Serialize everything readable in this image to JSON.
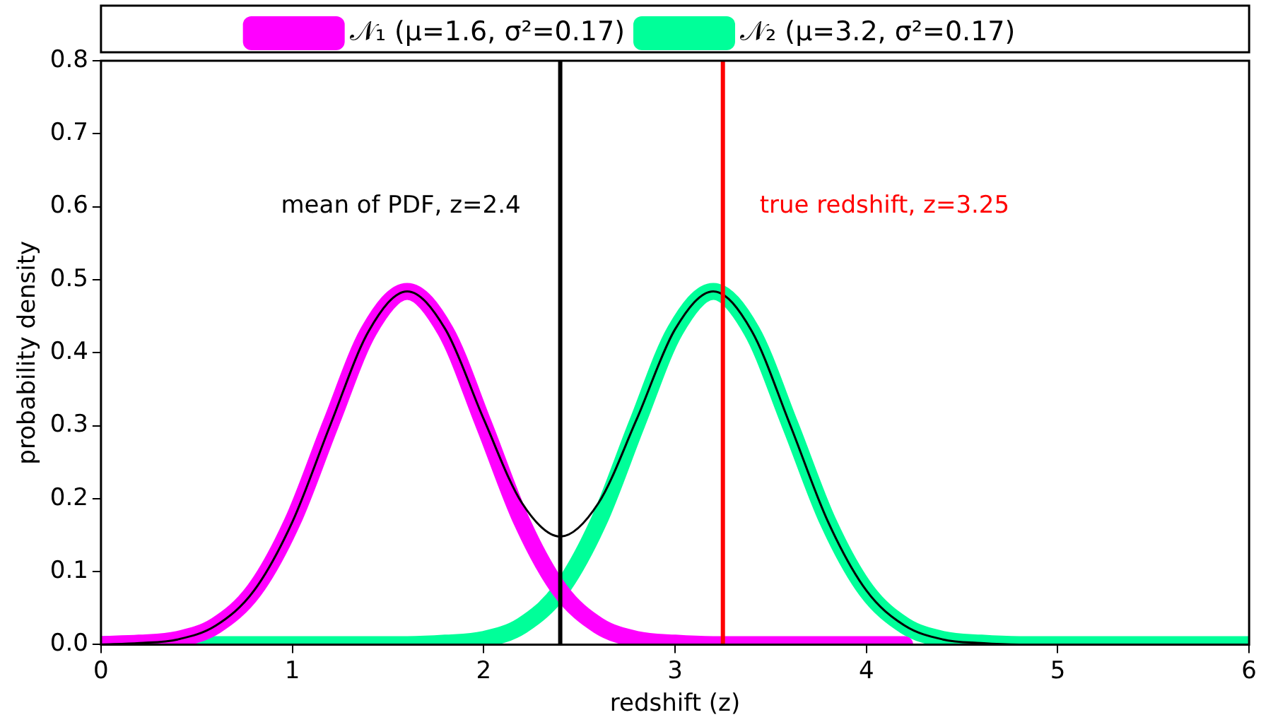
{
  "chart_data": {
    "type": "line",
    "xlabel": "redshift (z)",
    "ylabel": "probability density",
    "x": [
      0,
      0.2,
      0.4,
      0.6,
      0.8,
      1.0,
      1.2,
      1.4,
      1.6,
      1.8,
      2.0,
      2.2,
      2.4,
      2.6,
      2.8,
      3.0,
      3.2,
      3.4,
      3.6,
      3.8,
      4.0,
      4.2,
      4.4,
      4.6,
      4.8,
      5.0,
      5.2,
      5.4,
      5.6,
      5.8,
      6.0
    ],
    "series": [
      {
        "name": "𝒩₁ (μ=1.6, σ²=0.17)",
        "color": "#ff00ff",
        "x": [
          0,
          0.2,
          0.4,
          0.6,
          0.8,
          1.0,
          1.2,
          1.4,
          1.6,
          1.8,
          2.0,
          2.2,
          2.4,
          2.6,
          2.8,
          3.0,
          3.2,
          3.4,
          3.6,
          3.8,
          4.0,
          4.2
        ],
        "values": [
          0,
          0.002,
          0.007,
          0.026,
          0.074,
          0.168,
          0.302,
          0.43,
          0.484,
          0.43,
          0.302,
          0.168,
          0.074,
          0.026,
          0.007,
          0.002,
          0,
          0,
          0,
          0,
          0,
          0
        ]
      },
      {
        "name": "𝒩₂ (μ=3.2, σ²=0.17)",
        "color": "#00ff99",
        "values": [
          0,
          0,
          0,
          0,
          0,
          0,
          0,
          0,
          0,
          0.002,
          0.007,
          0.026,
          0.074,
          0.168,
          0.302,
          0.43,
          0.484,
          0.43,
          0.302,
          0.168,
          0.074,
          0.026,
          0.007,
          0.002,
          0,
          0,
          0,
          0,
          0,
          0,
          0
        ]
      },
      {
        "color": "#000000",
        "values": [
          0,
          0.002,
          0.007,
          0.026,
          0.074,
          0.168,
          0.302,
          0.43,
          0.484,
          0.432,
          0.309,
          0.194,
          0.148,
          0.194,
          0.309,
          0.432,
          0.484,
          0.43,
          0.302,
          0.168,
          0.074,
          0.026,
          0.007,
          0.002,
          0,
          0,
          0,
          0,
          0,
          0,
          0
        ]
      }
    ],
    "ref_lines": [
      {
        "axis": "x",
        "value": 2.4,
        "label": "mean of PDF, z=2.4",
        "color": "#000000"
      },
      {
        "axis": "x",
        "value": 3.25,
        "label": "true redshift, z=3.25",
        "color": "#ff0000"
      }
    ],
    "xlim": [
      0,
      6
    ],
    "xticks": [
      0,
      1,
      2,
      3,
      4,
      5,
      6
    ],
    "ylim": [
      0,
      0.8
    ],
    "yticks": [
      {
        "value": 0,
        "label": "0.0"
      },
      {
        "value": 0.1,
        "label": "0.1"
      },
      {
        "value": 0.2,
        "label": "0.2"
      },
      {
        "value": 0.3,
        "label": "0.3"
      },
      {
        "value": 0.4,
        "label": "0.4"
      },
      {
        "value": 0.5,
        "label": "0.5"
      },
      {
        "value": 0.6,
        "label": "0.6"
      },
      {
        "value": 0.7,
        "label": "0.7"
      },
      {
        "value": 0.8,
        "label": "0.8"
      }
    ],
    "grid": false,
    "legend": "top",
    "marker": "none",
    "line_style": "solid"
  }
}
